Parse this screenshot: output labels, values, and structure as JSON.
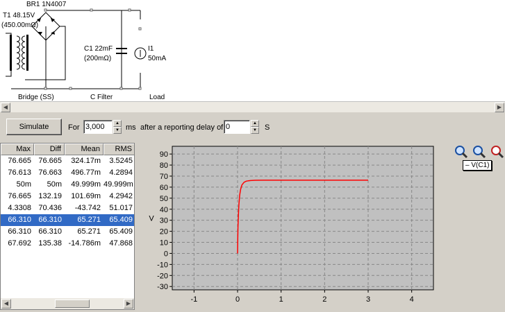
{
  "schematic": {
    "bridge_ref": "BR1 1N4007",
    "transformer_ref": "T1 48.15V",
    "transformer_r": "(450.00mΩ)",
    "cap_ref": "C1 22mF",
    "cap_r": "(200mΩ)",
    "load_ref": "I1",
    "load_value": "50mA",
    "section_bridge": "Bridge (SS)",
    "section_filter": "C Filter",
    "section_load": "Load"
  },
  "toolbar": {
    "simulate_label": "Simulate",
    "for_label": "For",
    "duration_value": "3,000",
    "ms_label": "ms",
    "delay_label": "after a reporting delay of",
    "delay_value": "0",
    "s_label": "S"
  },
  "table": {
    "headers": [
      "Max",
      "Diff",
      "Mean",
      "RMS"
    ],
    "rows": [
      [
        "76.665",
        "76.665",
        "324.17m",
        "3.5245"
      ],
      [
        "76.613",
        "76.663",
        "496.77m",
        "4.2894"
      ],
      [
        "50m",
        "50m",
        "49.999m",
        "49.999m"
      ],
      [
        "76.665",
        "132.19",
        "101.69m",
        "4.2942"
      ],
      [
        "4.3308",
        "70.436",
        "-43.742",
        "51.017"
      ],
      [
        "66.310",
        "66.310",
        "65.271",
        "65.409"
      ],
      [
        "66.310",
        "66.310",
        "65.271",
        "65.409"
      ],
      [
        "67.692",
        "135.38",
        "-14.786m",
        "47.868"
      ]
    ],
    "selected_row": 5
  },
  "plot": {
    "legend": "– V(C1)",
    "ylabel": "V",
    "trace_color": "#ff0000",
    "background": "#c0c0c0"
  },
  "chart_data": {
    "type": "line",
    "ylabel": "V",
    "xlim": [
      -1.5,
      4.5
    ],
    "ylim": [
      -33,
      97
    ],
    "xticks": [
      "-1",
      "0",
      "1",
      "2",
      "3",
      "4"
    ],
    "yticks": [
      "90",
      "80",
      "70",
      "60",
      "50",
      "40",
      "30",
      "20",
      "10",
      "0",
      "-10",
      "-20",
      "-30"
    ],
    "grid": true,
    "series": [
      {
        "name": "V(C1)",
        "x": [
          0,
          0.005,
          0.01,
          0.02,
          0.03,
          0.05,
          0.07,
          0.1,
          0.15,
          0.2,
          0.25,
          0.3,
          0.4,
          0.6,
          1.0,
          2.0,
          3.0
        ],
        "y": [
          0,
          14,
          24,
          36,
          44,
          53,
          58,
          62,
          64.5,
          65.4,
          65.8,
          66.0,
          66.2,
          66.3,
          66.3,
          66.3,
          66.3
        ]
      }
    ]
  }
}
